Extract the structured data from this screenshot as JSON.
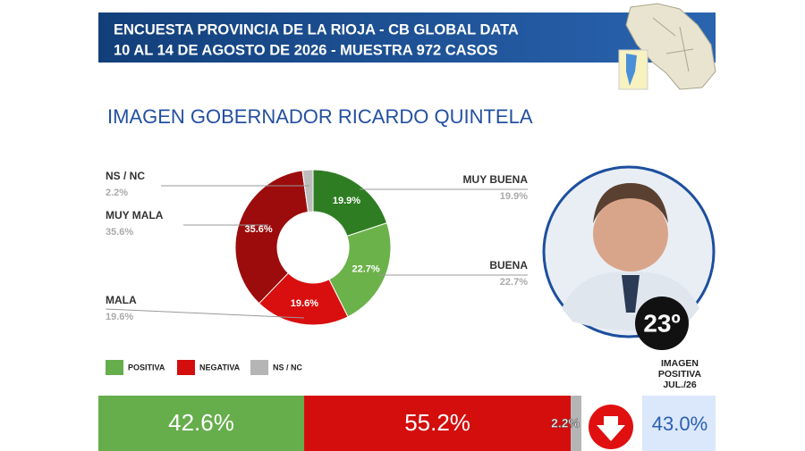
{
  "header": {
    "lines": [
      "ENCUESTA PROVINCIA DE LA RIOJA - CB GLOBAL DATA",
      "10 AL 14 DE AGOSTO DE 2026 - MUESTRA 972 CASOS"
    ]
  },
  "chart_data": [
    {
      "type": "donut",
      "title": "IMAGEN GOBERNADOR  RICARDO QUINTELA",
      "categories": [
        "MUY BUENA",
        "BUENA",
        "MALA",
        "MUY MALA",
        "NS / NC"
      ],
      "values": [
        19.9,
        22.7,
        19.6,
        35.6,
        2.2
      ],
      "value_labels": [
        "19.9%",
        "22.7%",
        "19.6%",
        "35.6%",
        "2.2%"
      ],
      "colors": [
        "#2f7d22",
        "#6cb24a",
        "#d90f0f",
        "#9c0c0c",
        "#bdbdbd"
      ]
    },
    {
      "type": "stacked-bar",
      "xlim": [
        0,
        100
      ],
      "series": [
        {
          "name": "POSITIVA",
          "color": "#66ad4c",
          "values": [
            42.6
          ],
          "value_labels": [
            "42.6%"
          ]
        },
        {
          "name": "NEGATIVA",
          "color": "#d40d0d",
          "values": [
            55.2
          ],
          "value_labels": [
            "55.2%"
          ]
        },
        {
          "name": "NS / NC",
          "color": "#b5b5b5",
          "values": [
            2.2
          ],
          "value_labels": [
            "2.2%"
          ]
        }
      ]
    }
  ],
  "ranking": "23º",
  "previous": {
    "label": [
      "IMAGEN",
      "POSITIVA",
      "JUL./26"
    ],
    "value": 43.0,
    "value_label": "43.0%"
  }
}
